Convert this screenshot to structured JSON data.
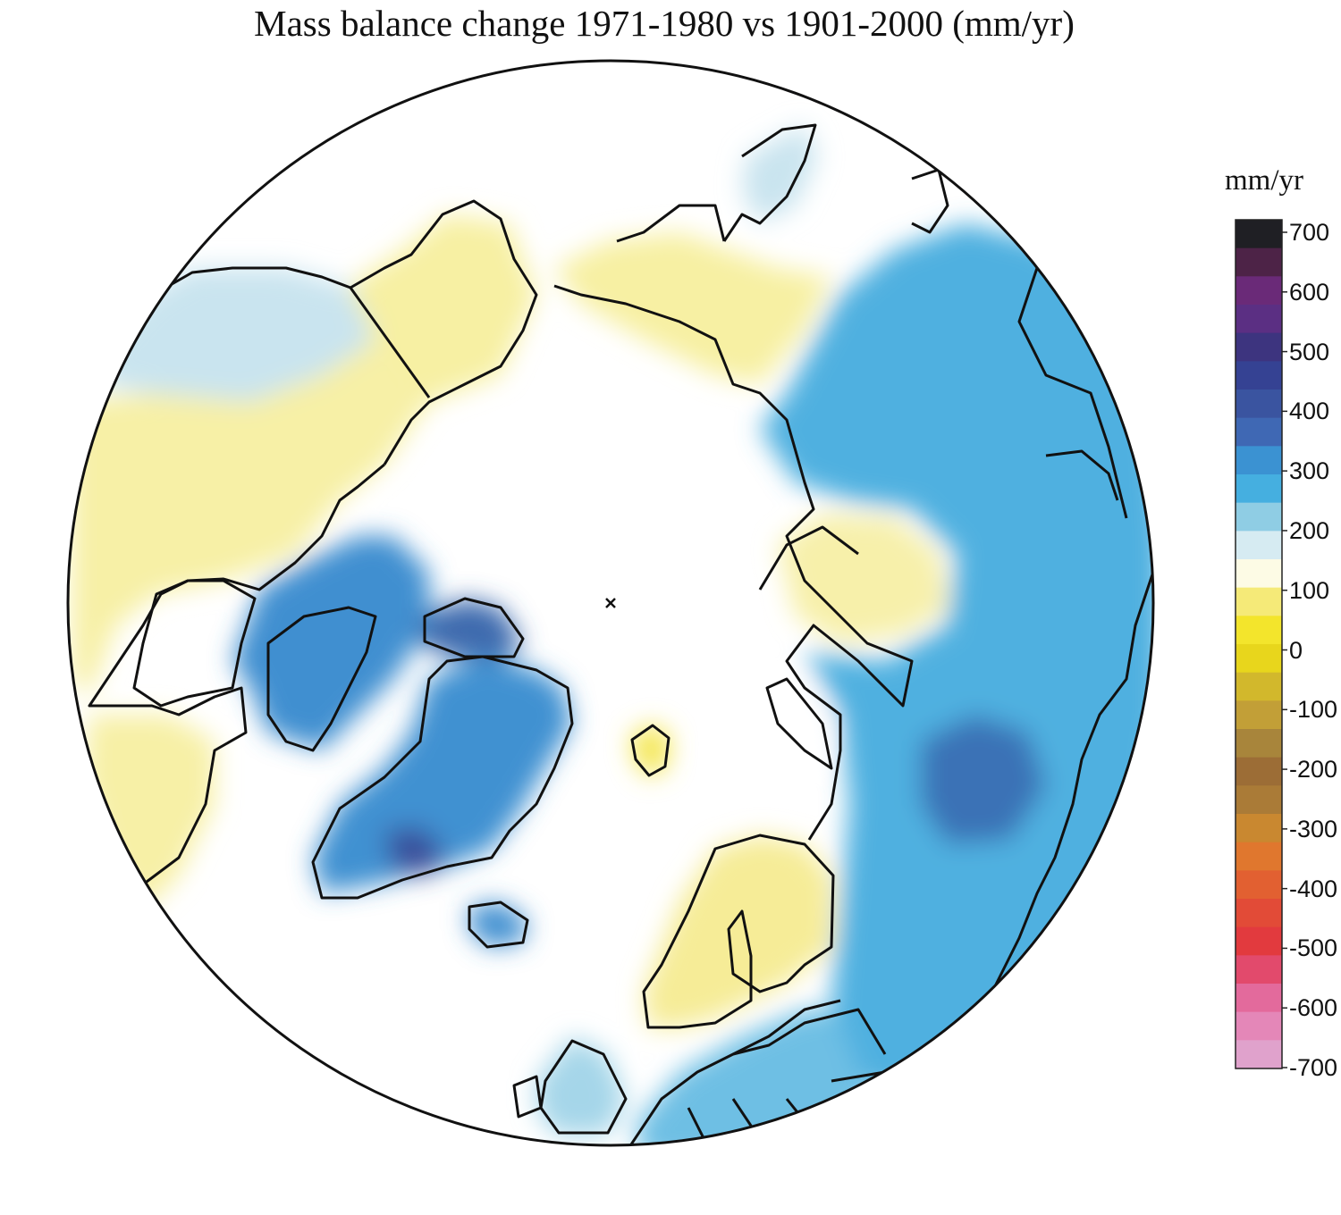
{
  "title": "Mass balance change 1971-1980 vs 1901-2000 (mm/yr)",
  "colorbar": {
    "unit": "mm/yr",
    "ticks": [
      "700",
      "600",
      "500",
      "400",
      "300",
      "200",
      "100",
      "0",
      "-100",
      "-200",
      "-300",
      "-400",
      "-500",
      "-600",
      "-700"
    ],
    "range": [
      -700,
      700
    ],
    "scale": [
      "#e0a2cc",
      "#e487b8",
      "#e36a9c",
      "#e24a6c",
      "#e23a3e",
      "#e24b37",
      "#e26031",
      "#e0772e",
      "#c98830",
      "#aa7b37",
      "#9c6d36",
      "#a8853b",
      "#c29f37",
      "#d2b82c",
      "#e8d61c",
      "#f3e52c",
      "#f5ea78",
      "#fdfbe5",
      "#d6ebf2",
      "#8fcde4",
      "#45afe0",
      "#3b92d2",
      "#3f68b4",
      "#3a54a0",
      "#354293",
      "#3d347f",
      "#5b2f83",
      "#6a2a78",
      "#4d2347",
      "#1f1f24"
    ]
  },
  "map": {
    "projection": "north-polar-stereographic",
    "no_data_color": "#ffffff",
    "coastline_color": "#111111",
    "regions": [
      {
        "id": "eastern-siberia",
        "anomaly_mm_yr": -60,
        "color": "#f7f0a3"
      },
      {
        "id": "alaska",
        "anomaly_mm_yr": 50,
        "color": "#c9e4ef"
      },
      {
        "id": "canada-interior",
        "anomaly_mm_yr": -55,
        "color": "#f7f0a6"
      },
      {
        "id": "canadian-arctic-archipelago",
        "anomaly_mm_yr": 220,
        "color": "#3f8fd0"
      },
      {
        "id": "ellesmere-island",
        "anomaly_mm_yr": 300,
        "color": "#3e6aae"
      },
      {
        "id": "greenland",
        "anomaly_mm_yr": 230,
        "color": "#4191d1"
      },
      {
        "id": "southern-greenland",
        "anomaly_mm_yr": 330,
        "color": "#3b4f9b"
      },
      {
        "id": "iceland",
        "anomaly_mm_yr": 230,
        "color": "#3f8fd0"
      },
      {
        "id": "svalbard",
        "anomaly_mm_yr": -80,
        "color": "#f4e64f"
      },
      {
        "id": "scandinavia",
        "anomaly_mm_yr": -60,
        "color": "#f6ec97"
      },
      {
        "id": "british-isles",
        "anomaly_mm_yr": 70,
        "color": "#a5d6e9"
      },
      {
        "id": "central-europe",
        "anomaly_mm_yr": 130,
        "color": "#6ebfe4"
      },
      {
        "id": "western-russia",
        "anomaly_mm_yr": 170,
        "color": "#4fb0e0"
      },
      {
        "id": "western-russia-core",
        "anomaly_mm_yr": 280,
        "color": "#3b72b6"
      },
      {
        "id": "central-siberia",
        "anomaly_mm_yr": 160,
        "color": "#58b5e2"
      },
      {
        "id": "taymyr",
        "anomaly_mm_yr": -50,
        "color": "#f7f0aa"
      },
      {
        "id": "novaya-zemlya",
        "anomaly_mm_yr": 30,
        "color": "#ffffff"
      }
    ]
  }
}
